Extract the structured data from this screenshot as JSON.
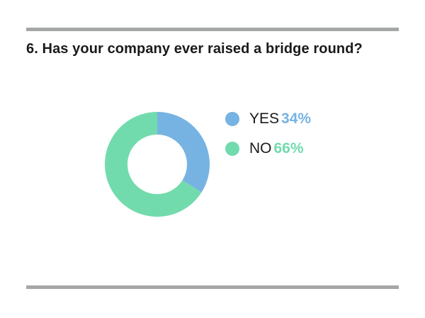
{
  "question": {
    "title": "6. Has your company ever raised a bridge round?"
  },
  "colors": {
    "yes": "#76b3e2",
    "no": "#72dbad",
    "rule": "#a5a7a7"
  },
  "chart_data": {
    "type": "pie",
    "variant": "donut",
    "title": "6. Has your company ever raised a bridge round?",
    "categories": [
      "YES",
      "NO"
    ],
    "values": [
      34,
      66
    ],
    "value_labels": [
      "34%",
      "66%"
    ],
    "colors": [
      "#76b3e2",
      "#72dbad"
    ],
    "legend_position": "right"
  }
}
